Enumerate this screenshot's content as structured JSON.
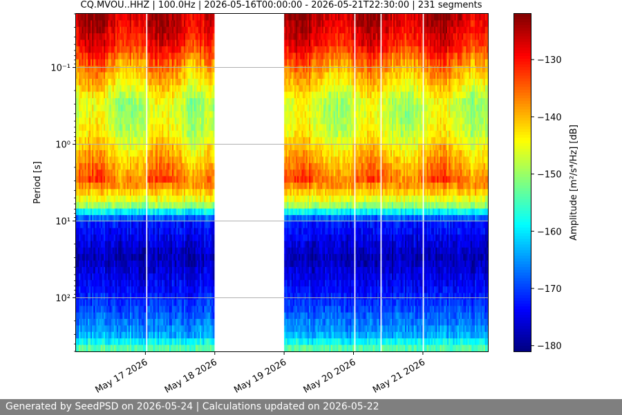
{
  "chart_data": {
    "type": "heatmap",
    "title": "CQ.MVOU..HHZ | 100.0Hz | 2026-05-16T00:00:00 - 2026-05-21T22:30:00 | 231 segments",
    "xlabel": "",
    "ylabel": "Period [s]",
    "colorbar_label": "Amplitude [m²/s⁴/Hz] [dB]",
    "colormap": "jet",
    "x_range": [
      "2026-05-16T00:00",
      "2026-05-21T22:30"
    ],
    "x_ticks": [
      "May 17 2026",
      "May 18 2026",
      "May 19 2026",
      "May 20 2026",
      "May 21 2026"
    ],
    "y_scale": "log",
    "y_inverted": true,
    "y_range": [
      0.02,
      500
    ],
    "y_ticks": [
      "10⁻¹",
      "10⁰",
      "10¹",
      "10²"
    ],
    "y_tick_values": [
      0.1,
      1,
      10,
      100
    ],
    "grid": true,
    "colorbar_range": [
      -181,
      -122
    ],
    "colorbar_ticks": [
      -130,
      -140,
      -150,
      -160,
      -170,
      -180
    ],
    "data_gaps": [
      {
        "start": "2026-05-17T00:00",
        "end": "2026-05-17T00:30"
      },
      {
        "start": "2026-05-18T00:00",
        "end": "2026-05-19T00:00"
      },
      {
        "start": "2026-05-20T00:00",
        "end": "2026-05-20T00:30"
      },
      {
        "start": "2026-05-20T09:00",
        "end": "2026-05-20T09:30"
      },
      {
        "start": "2026-05-21T00:00",
        "end": "2026-05-21T00:30"
      }
    ],
    "typical_profile": [
      {
        "period_s": 0.02,
        "db": -125
      },
      {
        "period_s": 0.05,
        "db": -130
      },
      {
        "period_s": 0.1,
        "db": -138
      },
      {
        "period_s": 0.3,
        "db": -148
      },
      {
        "period_s": 0.7,
        "db": -146
      },
      {
        "period_s": 1.5,
        "db": -140
      },
      {
        "period_s": 3,
        "db": -135
      },
      {
        "period_s": 6,
        "db": -148
      },
      {
        "period_s": 10,
        "db": -172
      },
      {
        "period_s": 30,
        "db": -178
      },
      {
        "period_s": 100,
        "db": -172
      },
      {
        "period_s": 300,
        "db": -164
      },
      {
        "period_s": 500,
        "db": -152
      }
    ]
  },
  "footer": {
    "text": "Generated by SeedPSD on 2026-05-24 | Calculations updated on 2026-05-22"
  }
}
